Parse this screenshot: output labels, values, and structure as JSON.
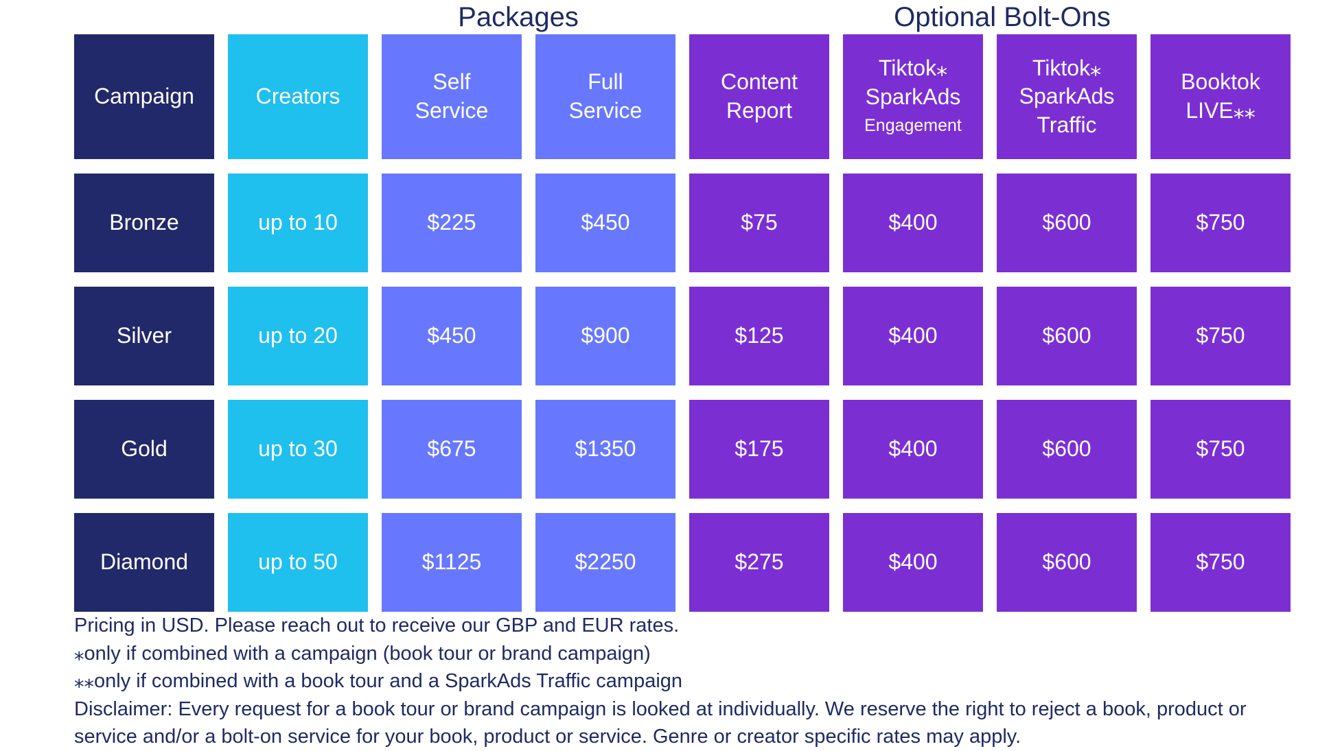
{
  "headings": {
    "packages": "Packages",
    "bolt_ons": "Optional Bolt-Ons"
  },
  "columns": {
    "campaign": "Campaign",
    "creators": "Creators",
    "self_service": [
      "Self",
      "Service"
    ],
    "full_service": [
      "Full",
      "Service"
    ],
    "content_report": [
      "Content",
      "Report"
    ],
    "sparkads_engagement": [
      "Tiktok⁎",
      "SparkAds",
      "Engagement"
    ],
    "sparkads_traffic": [
      "Tiktok⁎",
      "SparkAds",
      "Traffic"
    ],
    "booktok_live": [
      "Booktok",
      "LIVE⁎⁎"
    ]
  },
  "rows": [
    {
      "campaign": "Bronze",
      "creators": "up to 10",
      "self_service": "$225",
      "full_service": "$450",
      "content_report": "$75",
      "sparkads_engagement": "$400",
      "sparkads_traffic": "$600",
      "booktok_live": "$750"
    },
    {
      "campaign": "Silver",
      "creators": "up to 20",
      "self_service": "$450",
      "full_service": "$900",
      "content_report": "$125",
      "sparkads_engagement": "$400",
      "sparkads_traffic": "$600",
      "booktok_live": "$750"
    },
    {
      "campaign": "Gold",
      "creators": "up to 30",
      "self_service": "$675",
      "full_service": "$1350",
      "content_report": "$175",
      "sparkads_engagement": "$400",
      "sparkads_traffic": "$600",
      "booktok_live": "$750"
    },
    {
      "campaign": "Diamond",
      "creators": "up to 50",
      "self_service": "$1125",
      "full_service": "$2250",
      "content_report": "$275",
      "sparkads_engagement": "$400",
      "sparkads_traffic": "$600",
      "booktok_live": "$750"
    }
  ],
  "notes": {
    "currency": "Pricing in USD. Please reach out to receive our GBP and EUR rates.",
    "single_asterisk": "⁎only if combined with a campaign (book tour or brand campaign)",
    "double_asterisk": "⁎⁎only if combined with a book tour and a SparkAds Traffic campaign",
    "disclaimer": "Disclaimer: Every request for a book tour or brand campaign is looked at individually. We reserve the right to reject a book, product or service and/or a bolt-on service for your book, product or service. Genre or creator specific rates may apply."
  },
  "colors": {
    "navy": "#21296a",
    "cyan": "#1fbfee",
    "blue": "#6778fe",
    "purple": "#7b2fd3",
    "text": "#1f2a63"
  }
}
